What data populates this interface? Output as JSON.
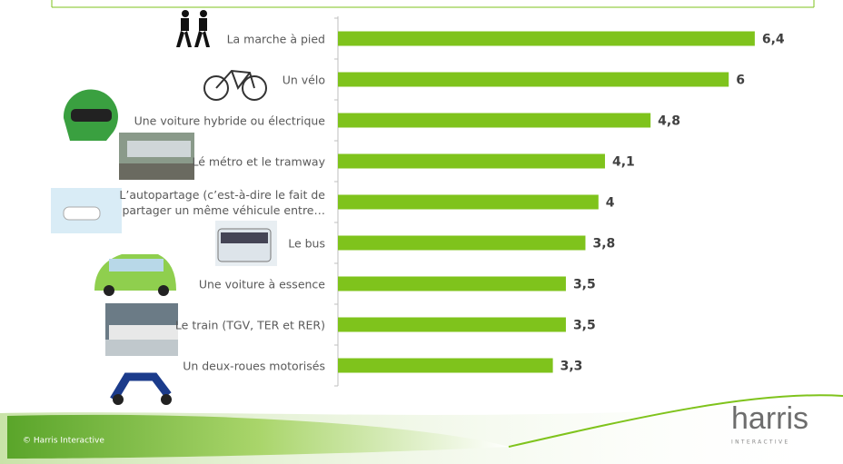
{
  "chart_data": {
    "type": "bar",
    "orientation": "horizontal",
    "categories": [
      "La marche à pied",
      "Un vélo",
      "Une voiture hybride ou électrique",
      "Lé métro et le tramway",
      "L’autopartage (c’est-à-dire le fait de partager un même véhicule entre…",
      "Le bus",
      "Une voiture à essence",
      "Le train (TGV, TER et RER)",
      "Un deux-roues motorisés"
    ],
    "values": [
      6.4,
      6,
      4.8,
      4.1,
      4,
      3.8,
      3.5,
      3.5,
      3.3
    ],
    "value_labels": [
      "6,4",
      "6",
      "4,8",
      "4,1",
      "4",
      "3,8",
      "3,5",
      "3,5",
      "3,3"
    ],
    "color": "#7fc31c"
  },
  "footer": {
    "copyright": "© Harris Interactive",
    "logo": "harris",
    "logo_sub": "INTERACTIVE"
  }
}
